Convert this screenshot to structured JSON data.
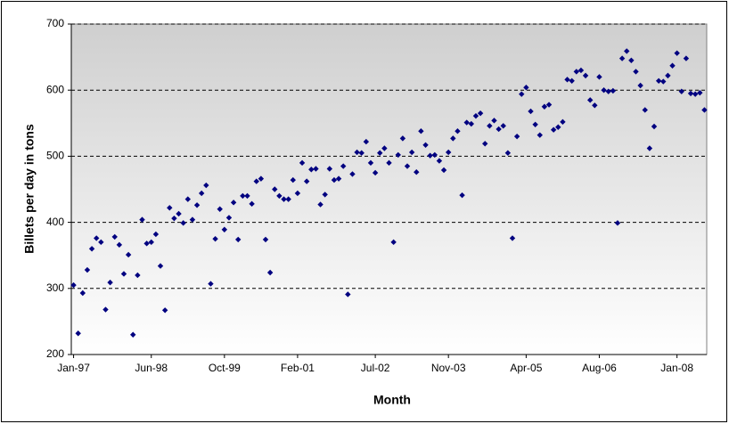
{
  "chart_data": {
    "type": "scatter",
    "x_label": "Month",
    "y_label": "Billets per day in tons",
    "categories": [
      "Jan-97",
      null,
      null,
      null,
      null,
      null,
      null,
      null,
      null,
      null,
      null,
      null,
      null,
      null,
      null,
      null,
      null,
      "Jun-98",
      null,
      null,
      null,
      null,
      null,
      null,
      null,
      null,
      null,
      null,
      null,
      null,
      null,
      null,
      null,
      "Oct-99",
      null,
      null,
      null,
      null,
      null,
      null,
      null,
      null,
      null,
      null,
      null,
      null,
      null,
      null,
      null,
      "Feb-01",
      null,
      null,
      null,
      null,
      null,
      null,
      null,
      null,
      null,
      null,
      null,
      null,
      null,
      null,
      null,
      null,
      "Jul-02",
      null,
      null,
      null,
      null,
      null,
      null,
      null,
      null,
      null,
      null,
      null,
      null,
      null,
      null,
      null,
      "Nov-03",
      null,
      null,
      null,
      null,
      null,
      null,
      null,
      null,
      null,
      null,
      null,
      null,
      null,
      null,
      null,
      null,
      "Apr-05",
      null,
      null,
      null,
      null,
      null,
      null,
      null,
      null,
      null,
      null,
      null,
      null,
      null,
      null,
      null,
      "Aug-06",
      null,
      null,
      null,
      null,
      null,
      null,
      null,
      null,
      null,
      null,
      null,
      null,
      null,
      null,
      null,
      null,
      "Jan-08",
      null,
      null,
      null,
      null,
      null,
      null
    ],
    "values": [
      305,
      232,
      293,
      328,
      360,
      376,
      370,
      268,
      309,
      378,
      366,
      322,
      351,
      230,
      320,
      404,
      368,
      370,
      382,
      334,
      267,
      422,
      406,
      413,
      399,
      435,
      404,
      426,
      444,
      456,
      307,
      375,
      420,
      389,
      407,
      430,
      374,
      440,
      440,
      428,
      462,
      466,
      374,
      324,
      450,
      440,
      435,
      435,
      464,
      444,
      490,
      462,
      480,
      481,
      427,
      442,
      481,
      464,
      466,
      485,
      291,
      473,
      506,
      505,
      522,
      490,
      475,
      505,
      512,
      490,
      370,
      502,
      527,
      485,
      506,
      476,
      538,
      517,
      501,
      502,
      493,
      479,
      506,
      527,
      538,
      441,
      551,
      549,
      561,
      565,
      519,
      546,
      554,
      541,
      546,
      505,
      376,
      530,
      594,
      604,
      568,
      548,
      532,
      575,
      578,
      540,
      544,
      552,
      616,
      614,
      628,
      630,
      622,
      585,
      577,
      620,
      600,
      598,
      599,
      399,
      648,
      659,
      645,
      628,
      607,
      570,
      512,
      545,
      614,
      613,
      622,
      637,
      656,
      598,
      648,
      595,
      594,
      596,
      570
    ],
    "color": "#000080",
    "ylim": [
      200,
      700
    ],
    "yticks": [
      200,
      300,
      400,
      500,
      600,
      700
    ],
    "grid": true
  }
}
